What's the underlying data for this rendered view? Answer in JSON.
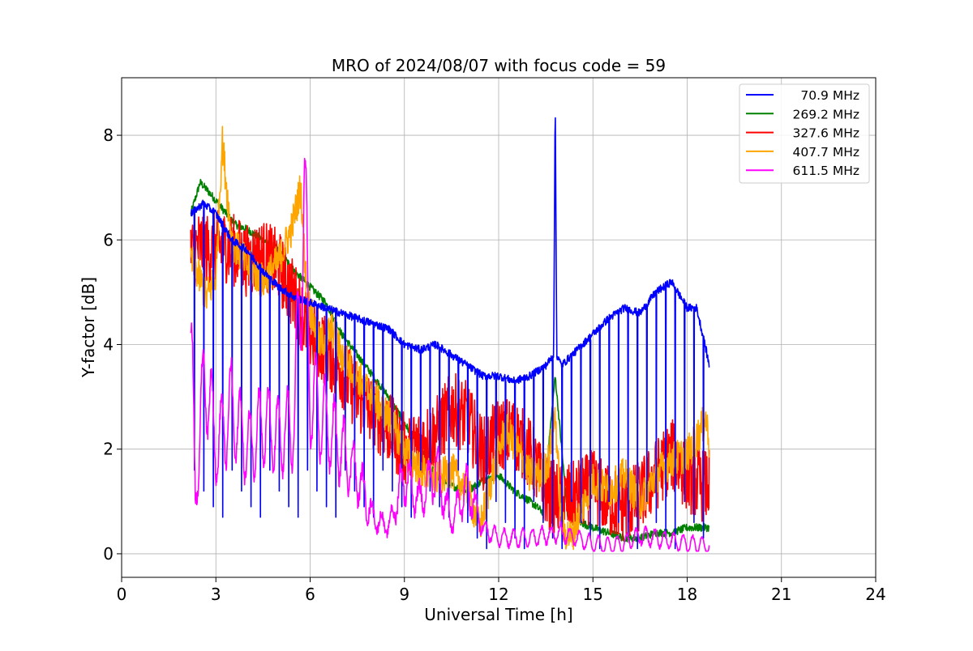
{
  "chart_data": {
    "type": "line",
    "title": "MRO of 2024/08/07 with focus code = 59",
    "xlabel": "Universal Time [h]",
    "ylabel": "Y-factor [dB]",
    "xlim": [
      0,
      24
    ],
    "ylim": [
      -0.45,
      9.1
    ],
    "xticks": [
      0,
      3,
      6,
      9,
      12,
      15,
      18,
      21,
      24
    ],
    "xtick_labels": [
      "0",
      "3",
      "6",
      "9",
      "12",
      "15",
      "18",
      "21",
      "24"
    ],
    "yticks": [
      0,
      2,
      4,
      6,
      8
    ],
    "ytick_labels": [
      "0",
      "2",
      "4",
      "6",
      "8"
    ],
    "grid": true,
    "legend_position": "top-right",
    "series": [
      {
        "name": " 70.9 MHz",
        "color": "#0000ff",
        "x": [
          2.2,
          2.6,
          3.0,
          3.5,
          4.0,
          4.5,
          5.0,
          5.5,
          6.0,
          6.5,
          7.0,
          7.5,
          8.0,
          8.5,
          9.0,
          9.5,
          10.0,
          10.5,
          11.0,
          11.5,
          12.0,
          12.5,
          13.0,
          13.5,
          13.75,
          13.8,
          13.85,
          14.0,
          14.5,
          15.0,
          15.5,
          16.0,
          16.5,
          17.0,
          17.5,
          18.0,
          18.3,
          18.6,
          18.7
        ],
        "y": [
          6.5,
          6.7,
          6.5,
          6.0,
          5.8,
          5.4,
          5.1,
          4.9,
          4.8,
          4.7,
          4.6,
          4.5,
          4.4,
          4.3,
          4.0,
          3.9,
          4.0,
          3.8,
          3.6,
          3.4,
          3.4,
          3.3,
          3.4,
          3.6,
          3.8,
          8.7,
          3.8,
          3.6,
          3.9,
          4.2,
          4.5,
          4.7,
          4.6,
          5.0,
          5.2,
          4.7,
          4.7,
          3.9,
          3.6
        ],
        "dip_interval_h": 0.3,
        "dip_start_h": 2.3,
        "dip_end_h": 18.6,
        "dip_min": [
          1.0,
          0.6,
          0.3,
          0.1
        ]
      },
      {
        "name": "269.2 MHz",
        "color": "#008000",
        "x": [
          2.2,
          2.5,
          2.8,
          3.2,
          3.6,
          4.0,
          4.5,
          5.0,
          5.5,
          6.0,
          6.5,
          7.0,
          7.5,
          8.0,
          8.5,
          9.0,
          9.5,
          10.0,
          10.5,
          11.0,
          11.5,
          12.0,
          12.5,
          13.0,
          13.4,
          13.8,
          14.2,
          14.6,
          15.0,
          15.5,
          16.0,
          16.5,
          17.0,
          17.5,
          18.0,
          18.7
        ],
        "y": [
          6.5,
          7.1,
          6.9,
          6.6,
          6.3,
          6.2,
          6.0,
          5.8,
          5.4,
          5.1,
          4.8,
          4.2,
          3.8,
          3.4,
          3.0,
          2.5,
          2.0,
          1.5,
          1.3,
          1.2,
          1.4,
          1.5,
          1.2,
          1.0,
          0.8,
          3.4,
          0.7,
          0.6,
          0.5,
          0.4,
          0.3,
          0.3,
          0.4,
          0.4,
          0.5,
          0.5
        ]
      },
      {
        "name": "327.6 MHz",
        "color": "#ff0000",
        "x": [
          2.2,
          2.5,
          2.8,
          3.2,
          3.6,
          4.0,
          4.5,
          5.0,
          5.5,
          6.0,
          6.5,
          7.0,
          7.5,
          8.0,
          8.5,
          9.0,
          9.5,
          10.0,
          10.5,
          11.0,
          11.5,
          12.0,
          12.5,
          13.0,
          13.5,
          14.0,
          14.5,
          15.0,
          15.5,
          16.0,
          16.5,
          17.0,
          17.5,
          18.0,
          18.5,
          18.7
        ],
        "y": [
          5.7,
          5.9,
          5.8,
          5.9,
          5.8,
          5.6,
          5.7,
          5.5,
          4.9,
          4.2,
          3.9,
          3.5,
          3.0,
          2.7,
          2.4,
          2.0,
          2.1,
          2.3,
          2.8,
          2.6,
          1.9,
          2.3,
          2.3,
          1.9,
          1.2,
          1.0,
          1.1,
          1.3,
          1.0,
          0.9,
          1.1,
          1.5,
          1.9,
          1.5,
          1.3,
          1.3
        ],
        "noise": 0.7
      },
      {
        "name": "407.7 MHz",
        "color": "#ffa500",
        "x": [
          2.2,
          2.4,
          2.7,
          3.0,
          3.2,
          3.5,
          4.0,
          4.5,
          5.0,
          5.4,
          5.7,
          5.9,
          6.3,
          6.7,
          7.0,
          7.5,
          8.0,
          8.5,
          9.0,
          9.5,
          10.0,
          10.5,
          11.0,
          11.4,
          11.8,
          12.2,
          12.6,
          13.0,
          13.3,
          13.6,
          13.8,
          14.0,
          14.3,
          14.6,
          15.0,
          15.5,
          16.0,
          16.5,
          17.0,
          17.5,
          18.0,
          18.3,
          18.6,
          18.7
        ],
        "y": [
          5.6,
          5.4,
          4.9,
          5.3,
          7.9,
          6.0,
          5.5,
          5.2,
          5.6,
          6.2,
          7.0,
          4.9,
          4.0,
          4.3,
          3.8,
          3.4,
          3.0,
          2.6,
          2.0,
          1.6,
          1.4,
          1.6,
          1.2,
          0.5,
          1.5,
          2.4,
          2.0,
          1.5,
          1.5,
          1.8,
          2.7,
          0.5,
          0.3,
          0.8,
          1.4,
          1.2,
          1.5,
          1.0,
          1.5,
          1.8,
          1.9,
          2.2,
          2.6,
          2.1
        ],
        "noise": 0.35
      },
      {
        "name": "611.5 MHz",
        "color": "#ff00ff",
        "x": [
          2.2,
          2.35,
          2.5,
          2.7,
          3.0,
          3.5,
          4.0,
          4.5,
          5.0,
          5.5,
          5.8,
          6.0,
          6.5,
          7.0,
          7.5,
          8.0,
          8.5,
          9.0,
          9.5,
          10.0,
          10.5,
          11.0,
          11.5,
          12.0,
          12.5,
          13.0,
          13.5,
          14.0,
          14.5,
          15.0,
          15.5,
          16.0,
          16.5,
          17.0,
          17.5,
          18.0,
          18.7
        ],
        "y": [
          4.3,
          1.0,
          2.5,
          3.5,
          2.0,
          2.8,
          2.0,
          2.5,
          2.2,
          2.5,
          6.9,
          3.0,
          2.5,
          2.0,
          1.5,
          0.7,
          0.5,
          1.5,
          1.0,
          1.6,
          0.6,
          1.3,
          0.5,
          0.3,
          0.3,
          0.3,
          0.35,
          0.4,
          0.3,
          0.2,
          0.15,
          0.2,
          0.35,
          0.3,
          0.25,
          0.2,
          0.15
        ],
        "oscillation": 1.6
      }
    ]
  }
}
